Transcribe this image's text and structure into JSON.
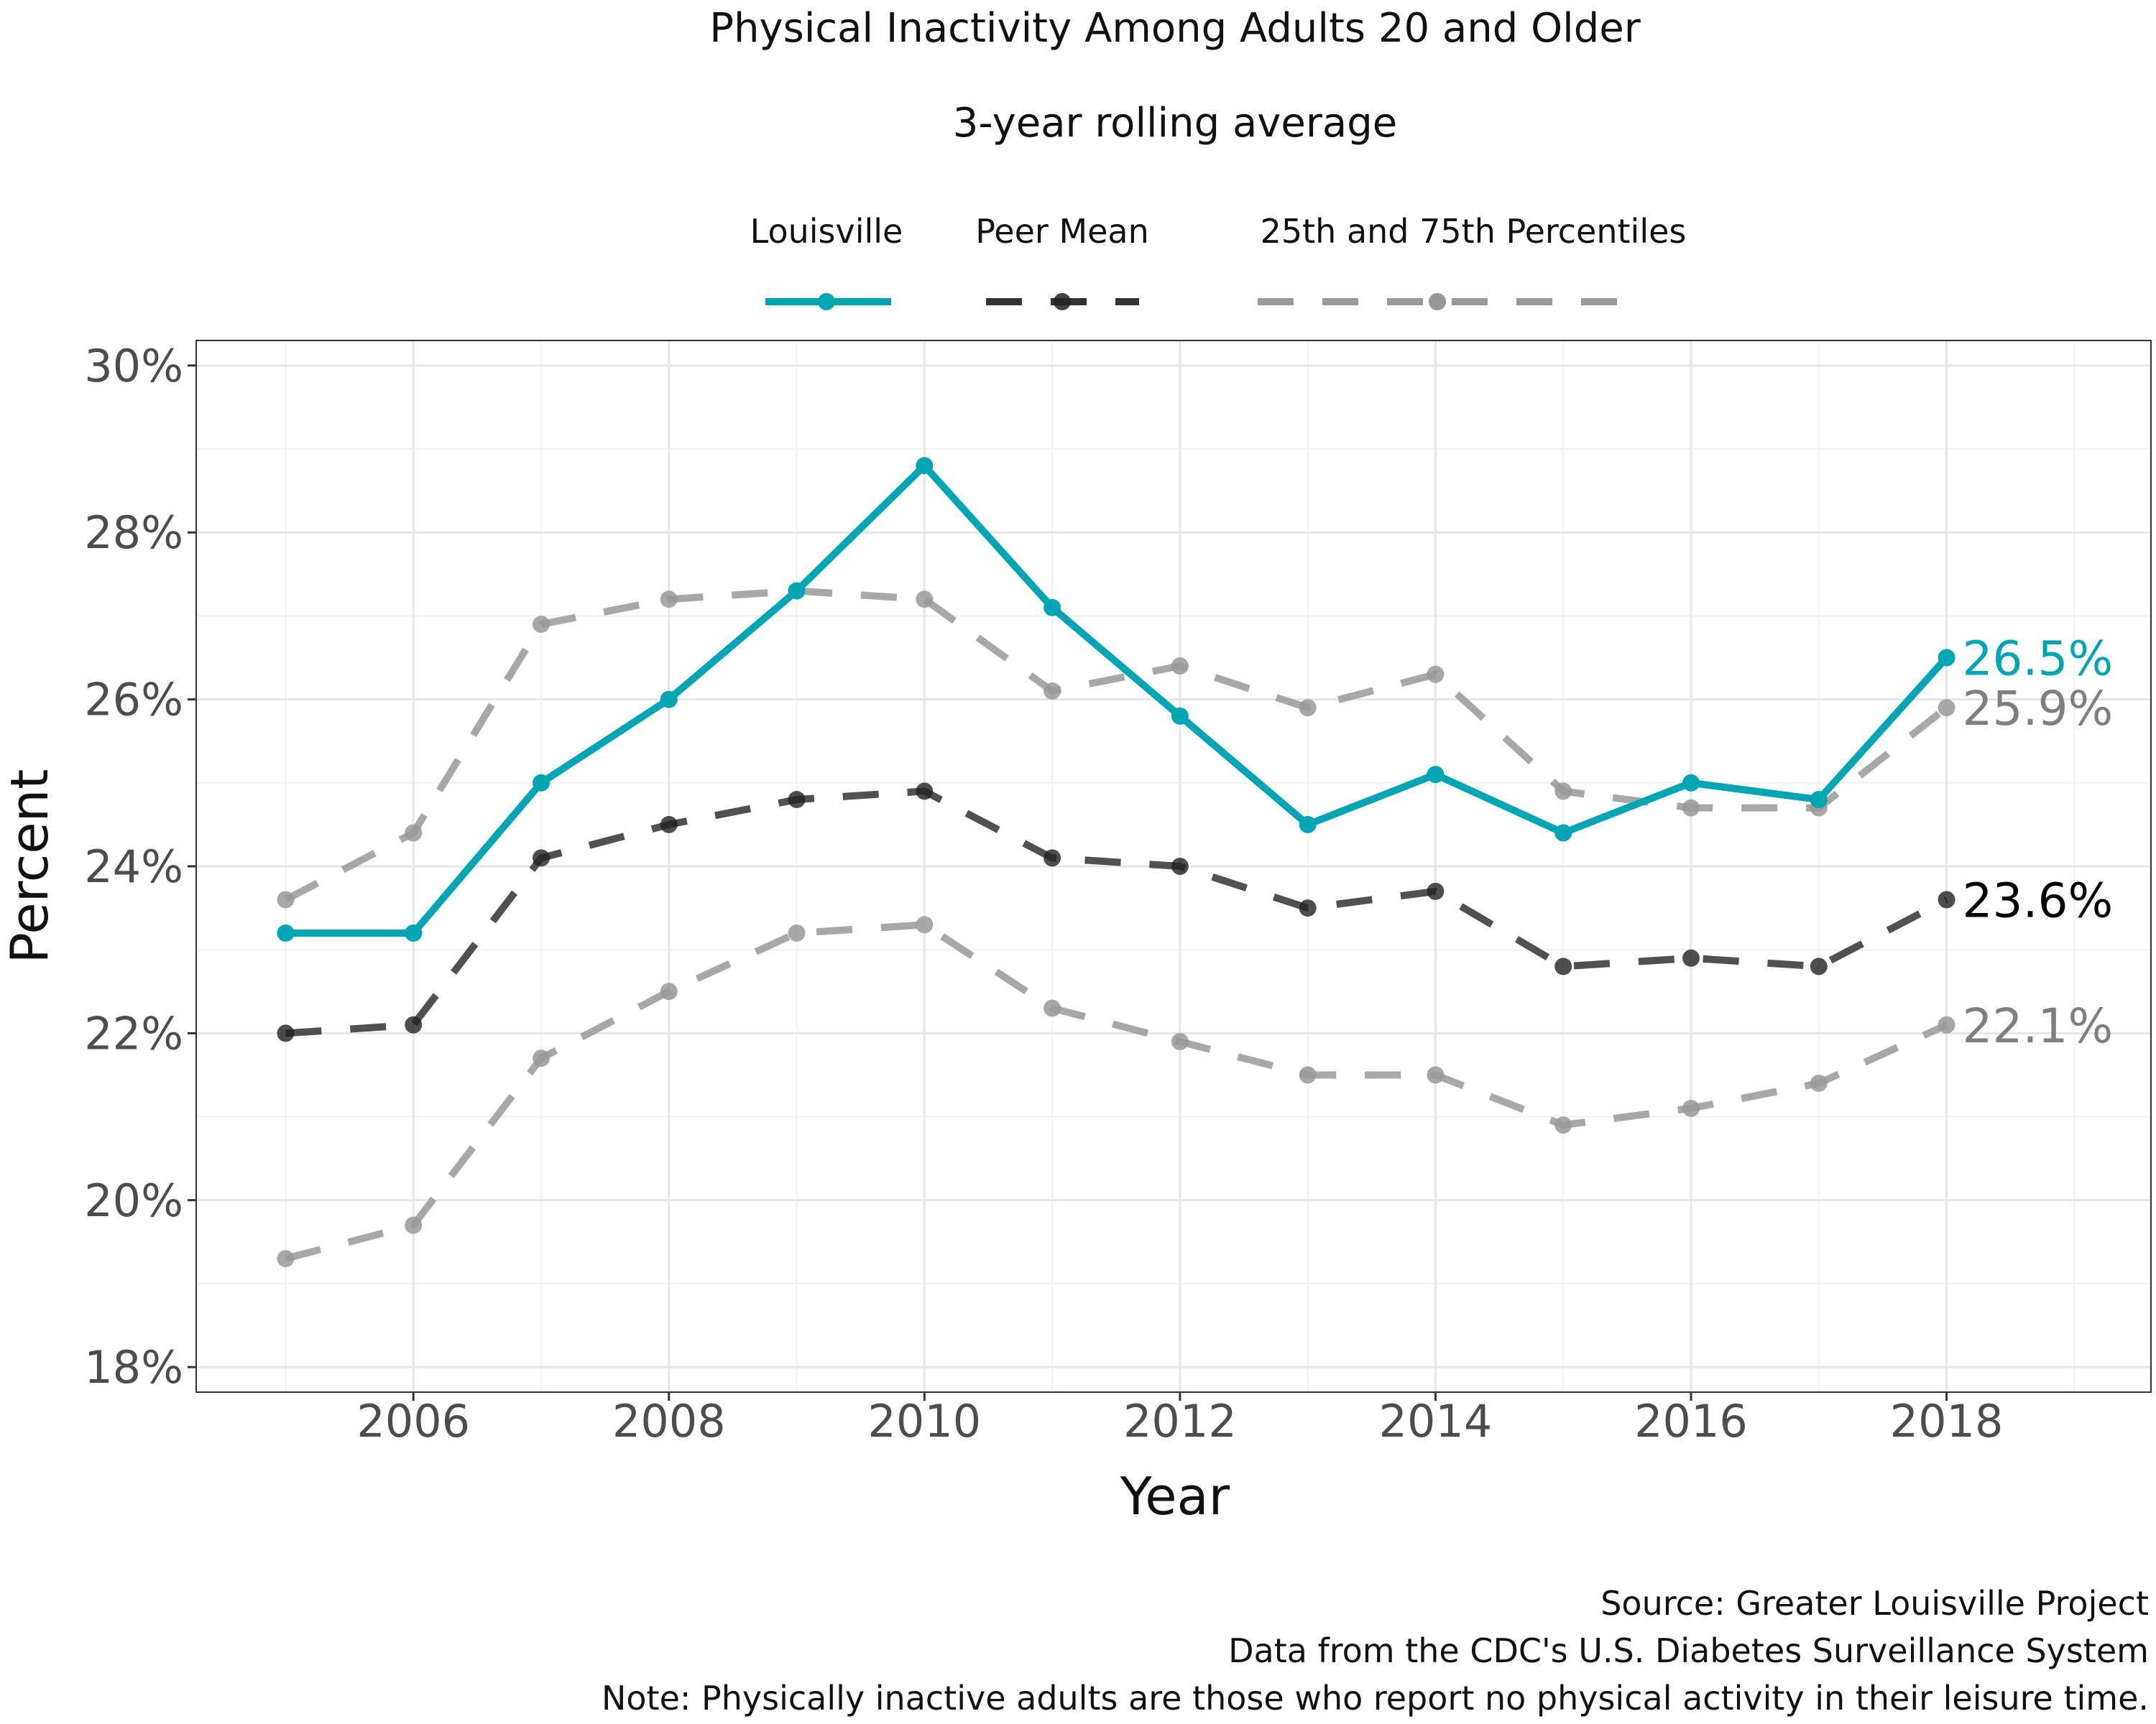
{
  "chart_data": {
    "type": "line",
    "title": "Physical Inactivity Among Adults 20 and Older",
    "subtitle": "3-year rolling average",
    "xlabel": "Year",
    "ylabel": "Percent",
    "x": [
      2005,
      2006,
      2007,
      2008,
      2009,
      2010,
      2011,
      2012,
      2013,
      2014,
      2015,
      2016,
      2017,
      2018
    ],
    "xlim": [
      2004.3,
      2019.6
    ],
    "ylim": [
      17.7,
      30.3
    ],
    "x_ticks": [
      2006,
      2008,
      2010,
      2012,
      2014,
      2016,
      2018
    ],
    "x_tick_labels": [
      "2006",
      "2008",
      "2010",
      "2012",
      "2014",
      "2016",
      "2018"
    ],
    "y_ticks": [
      18,
      20,
      22,
      24,
      26,
      28,
      30
    ],
    "y_tick_labels": [
      "18%",
      "20%",
      "22%",
      "24%",
      "26%",
      "28%",
      "30%"
    ],
    "grid": true,
    "legend_position": "top",
    "legend": [
      {
        "label": "Louisville",
        "color": "#00A6B4",
        "style": "solid"
      },
      {
        "label": "Peer Mean",
        "color": "#333333",
        "style": "dashed"
      },
      {
        "label": "25th and 75th Percentiles",
        "color": "#999999",
        "style": "dashed"
      }
    ],
    "series": [
      {
        "role": "louisville",
        "color": "#00A6B4",
        "values": [
          23.2,
          23.2,
          25.0,
          26.0,
          27.3,
          28.8,
          27.1,
          25.8,
          24.5,
          25.1,
          24.4,
          25.0,
          24.8,
          26.5
        ],
        "end_label": "26.5%"
      },
      {
        "role": "peer_mean",
        "color": "#333333",
        "values": [
          22.0,
          22.1,
          24.1,
          24.5,
          24.8,
          24.9,
          24.1,
          24.0,
          23.5,
          23.7,
          22.8,
          22.9,
          22.8,
          23.6
        ],
        "end_label": "23.6%"
      },
      {
        "role": "percentile_75",
        "color": "#999999",
        "values": [
          23.6,
          24.4,
          26.9,
          27.2,
          27.3,
          27.2,
          26.1,
          26.4,
          25.9,
          26.3,
          24.9,
          24.7,
          24.7,
          25.9
        ],
        "end_label": "25.9%"
      },
      {
        "role": "percentile_25",
        "color": "#999999",
        "values": [
          19.3,
          19.7,
          21.7,
          22.5,
          23.2,
          23.3,
          22.3,
          21.9,
          21.5,
          21.5,
          20.9,
          21.1,
          21.4,
          22.1
        ],
        "end_label": "22.1%"
      }
    ]
  },
  "caption": {
    "source": "Source: Greater Louisville Project",
    "data_note": "Data from the CDC's U.S. Diabetes Surveillance System",
    "note": "Note: Physically inactive adults are those who report no physical activity in their leisure time."
  }
}
